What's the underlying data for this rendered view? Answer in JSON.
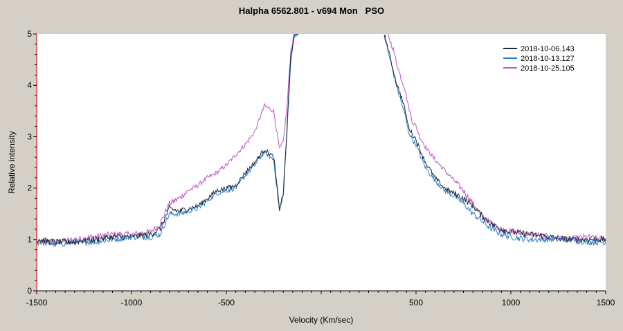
{
  "chart_data": {
    "type": "line",
    "title": "Halpha 6562.801 - v694 Mon   PSO",
    "xlabel": "Velocity (Km/sec)",
    "ylabel": "Relative intensity",
    "xlim": [
      -1500,
      1500
    ],
    "ylim": [
      0,
      5
    ],
    "xticks": [
      -1500,
      -1000,
      -500,
      0,
      500,
      1000,
      1500
    ],
    "xtick_labels": [
      "-1500",
      "-1000",
      "-500",
      "",
      "500",
      "1000",
      "1500"
    ],
    "yticks": [
      0,
      1,
      2,
      3,
      4,
      5
    ],
    "ytick_labels": [
      "0",
      "1",
      "2",
      "3",
      "4",
      "5"
    ],
    "grid": false,
    "legend_position": "top-right",
    "series": [
      {
        "name": "2018-10-06.143",
        "color": "#1e2a36",
        "x": [
          -1500,
          -1400,
          -1300,
          -1200,
          -1100,
          -1000,
          -900,
          -850,
          -800,
          -750,
          -700,
          -650,
          -600,
          -550,
          -500,
          -450,
          -400,
          -350,
          -300,
          -250,
          -220,
          -200,
          -180,
          -160,
          -140,
          -120,
          330,
          340,
          360,
          380,
          400,
          420,
          440,
          460,
          480,
          500,
          520,
          550,
          600,
          650,
          700,
          750,
          800,
          850,
          900,
          950,
          1000,
          1100,
          1200,
          1300,
          1400,
          1500
        ],
        "y": [
          1.0,
          0.95,
          0.95,
          1.0,
          1.05,
          1.05,
          1.1,
          1.2,
          1.6,
          1.55,
          1.6,
          1.65,
          1.8,
          1.95,
          2.0,
          2.05,
          2.3,
          2.5,
          2.75,
          2.6,
          1.6,
          1.9,
          3.2,
          4.6,
          5.0,
          5.0,
          5.0,
          4.9,
          4.6,
          4.3,
          4.0,
          3.8,
          3.55,
          3.2,
          3.05,
          2.95,
          2.75,
          2.5,
          2.2,
          2.0,
          1.9,
          1.8,
          1.65,
          1.45,
          1.3,
          1.2,
          1.15,
          1.1,
          1.05,
          1.0,
          1.0,
          1.0
        ]
      },
      {
        "name": "2018-10-13.127",
        "color": "#2a7fce",
        "x": [
          -1500,
          -1400,
          -1300,
          -1200,
          -1100,
          -1000,
          -900,
          -850,
          -800,
          -750,
          -700,
          -650,
          -600,
          -550,
          -500,
          -450,
          -400,
          -350,
          -300,
          -250,
          -220,
          -200,
          -180,
          -160,
          -140,
          -120,
          330,
          340,
          360,
          380,
          400,
          420,
          440,
          460,
          480,
          500,
          520,
          550,
          600,
          650,
          700,
          750,
          800,
          850,
          900,
          950,
          1000,
          1100,
          1200,
          1300,
          1400,
          1500
        ],
        "y": [
          0.95,
          0.9,
          0.95,
          0.95,
          1.0,
          1.05,
          1.05,
          1.1,
          1.5,
          1.5,
          1.55,
          1.6,
          1.75,
          1.9,
          1.95,
          2.0,
          2.25,
          2.45,
          2.7,
          2.55,
          1.55,
          1.85,
          3.1,
          4.5,
          5.0,
          5.0,
          5.0,
          4.85,
          4.55,
          4.25,
          3.95,
          3.7,
          3.45,
          3.1,
          2.95,
          2.85,
          2.65,
          2.4,
          2.15,
          1.95,
          1.85,
          1.7,
          1.5,
          1.35,
          1.2,
          1.1,
          1.05,
          1.0,
          1.0,
          1.0,
          0.95,
          0.95
        ]
      },
      {
        "name": "2018-10-25.105",
        "color": "#c655c8",
        "x": [
          -1500,
          -1400,
          -1300,
          -1200,
          -1100,
          -1000,
          -900,
          -850,
          -800,
          -750,
          -700,
          -650,
          -600,
          -550,
          -500,
          -450,
          -400,
          -350,
          -300,
          -250,
          -220,
          -200,
          -180,
          -160,
          -140,
          -120,
          350,
          360,
          380,
          400,
          420,
          440,
          460,
          480,
          500,
          520,
          550,
          600,
          650,
          700,
          750,
          800,
          850,
          900,
          950,
          1000,
          1100,
          1200,
          1300,
          1400,
          1500
        ],
        "y": [
          0.95,
          0.95,
          1.0,
          1.05,
          1.1,
          1.1,
          1.15,
          1.3,
          1.7,
          1.8,
          1.95,
          2.05,
          2.2,
          2.3,
          2.45,
          2.65,
          2.85,
          3.1,
          3.6,
          3.5,
          2.75,
          2.9,
          3.6,
          4.7,
          5.0,
          5.0,
          5.0,
          4.9,
          4.7,
          4.4,
          4.15,
          3.95,
          3.6,
          3.3,
          3.2,
          3.0,
          2.8,
          2.55,
          2.35,
          2.15,
          1.95,
          1.7,
          1.45,
          1.3,
          1.2,
          1.15,
          1.1,
          1.05,
          1.0,
          1.05,
          1.0
        ]
      }
    ]
  }
}
